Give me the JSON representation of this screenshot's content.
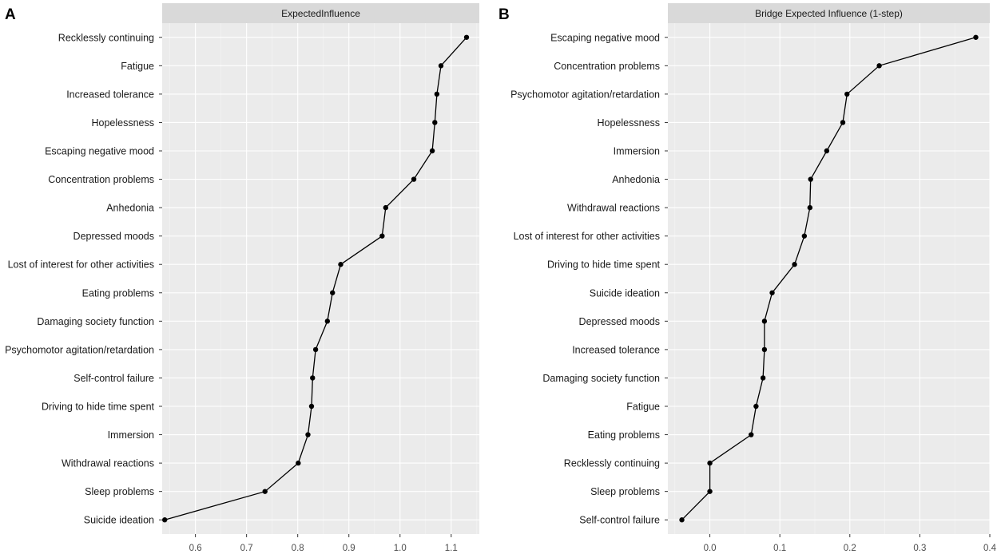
{
  "chart_data": [
    {
      "type": "line",
      "panel_label": "A",
      "title": "ExpectedInfluence",
      "xlabel": "",
      "ylabel": "",
      "xlim": [
        0.535,
        1.155
      ],
      "x_ticks": [
        0.6,
        0.7,
        0.8,
        0.9,
        1.0,
        1.1
      ],
      "x_tick_labels": [
        "0.6",
        "0.7",
        "0.8",
        "0.9",
        "1.0",
        "1.1"
      ],
      "categories": [
        "Recklessly continuing",
        "Fatigue",
        "Increased tolerance",
        "Hopelessness",
        "Escaping negative mood",
        "Concentration problems",
        "Anhedonia",
        "Depressed moods",
        "Lost of interest for other activities",
        "Eating problems",
        "Damaging society function",
        "Psychomotor agitation/retardation",
        "Self-control failure",
        "Driving to hide time spent",
        "Immersion",
        "Withdrawal reactions",
        "Sleep problems",
        "Suicide ideation"
      ],
      "values": [
        1.13,
        1.08,
        1.072,
        1.068,
        1.063,
        1.027,
        0.972,
        0.965,
        0.884,
        0.868,
        0.858,
        0.835,
        0.829,
        0.827,
        0.82,
        0.801,
        0.736,
        0.54
      ],
      "grid": true
    },
    {
      "type": "line",
      "panel_label": "B",
      "title": "Bridge Expected Influence (1-step)",
      "xlabel": "",
      "ylabel": "",
      "xlim": [
        -0.06,
        0.4
      ],
      "x_ticks": [
        0.0,
        0.1,
        0.2,
        0.3,
        0.4
      ],
      "x_tick_labels": [
        "0.0",
        "0.1",
        "0.2",
        "0.3",
        "0.4"
      ],
      "categories": [
        "Escaping negative mood",
        "Concentration problems",
        "Psychomotor agitation/retardation",
        "Hopelessness",
        "Immersion",
        "Anhedonia",
        "Withdrawal reactions",
        "Lost of interest for other activities",
        "Driving to hide time spent",
        "Suicide ideation",
        "Depressed moods",
        "Increased tolerance",
        "Damaging society function",
        "Fatigue",
        "Eating problems",
        "Recklessly continuing",
        "Sleep problems",
        "Self-control failure"
      ],
      "values": [
        0.38,
        0.242,
        0.196,
        0.19,
        0.167,
        0.144,
        0.143,
        0.135,
        0.121,
        0.089,
        0.078,
        0.078,
        0.076,
        0.066,
        0.059,
        0.0,
        0.0,
        -0.04
      ],
      "grid": true
    }
  ]
}
